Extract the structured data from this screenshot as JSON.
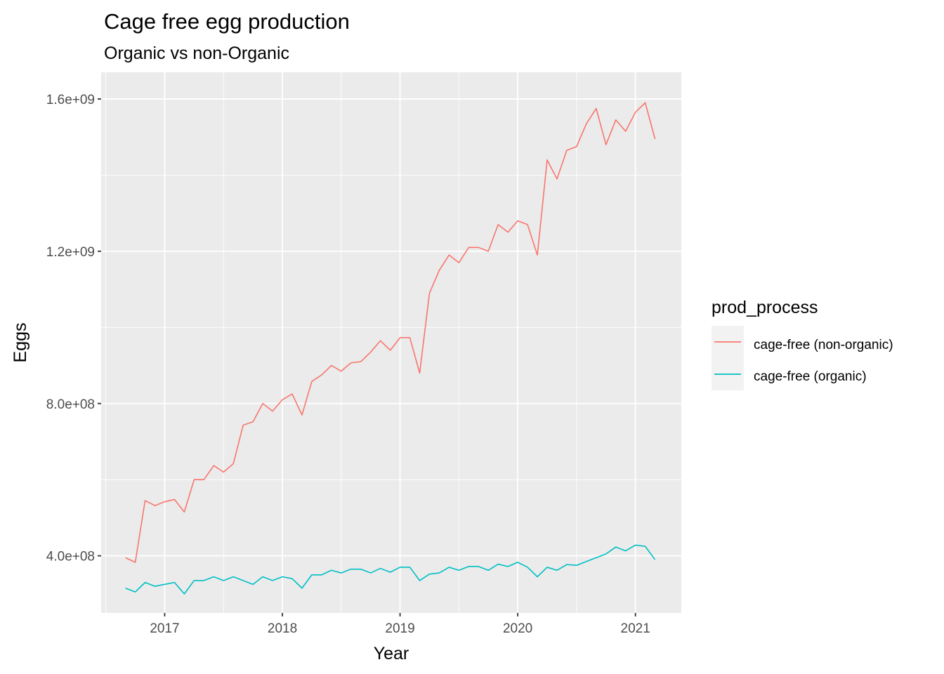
{
  "chart_data": {
    "type": "line",
    "title": "Cage free egg production",
    "subtitle": "Organic vs non-Organic",
    "xlabel": "Year",
    "ylabel": "Eggs",
    "xlim": [
      2016.46,
      2021.39
    ],
    "ylim": [
      250000000,
      1670000000
    ],
    "x_ticks": [
      2017,
      2018,
      2019,
      2020,
      2021
    ],
    "x_tick_labels": [
      "2017",
      "2018",
      "2019",
      "2020",
      "2021"
    ],
    "y_ticks": [
      400000000,
      800000000,
      1200000000,
      1600000000
    ],
    "y_tick_labels": [
      "4.0e+08",
      "8.0e+08",
      "1.2e+09",
      "1.6e+09"
    ],
    "grid": true,
    "legend_position": "right",
    "legend_title": "prod_process",
    "x": [
      "2016-09",
      "2016-10",
      "2016-11",
      "2016-12",
      "2017-01",
      "2017-02",
      "2017-03",
      "2017-04",
      "2017-05",
      "2017-06",
      "2017-07",
      "2017-08",
      "2017-09",
      "2017-10",
      "2017-11",
      "2017-12",
      "2018-01",
      "2018-02",
      "2018-03",
      "2018-04",
      "2018-05",
      "2018-06",
      "2018-07",
      "2018-08",
      "2018-09",
      "2018-10",
      "2018-11",
      "2018-12",
      "2019-01",
      "2019-02",
      "2019-03",
      "2019-04",
      "2019-05",
      "2019-06",
      "2019-07",
      "2019-08",
      "2019-09",
      "2019-10",
      "2019-11",
      "2019-12",
      "2020-01",
      "2020-02",
      "2020-03",
      "2020-04",
      "2020-05",
      "2020-06",
      "2020-07",
      "2020-08",
      "2020-09",
      "2020-10",
      "2020-11",
      "2020-12",
      "2021-01",
      "2021-02",
      "2021-03"
    ],
    "series": [
      {
        "name": "cage-free (non-organic)",
        "color": "#f8766d",
        "values": [
          395000000,
          383000000,
          545000000,
          532000000,
          542000000,
          548000000,
          515000000,
          600000000,
          600000000,
          637000000,
          620000000,
          642000000,
          743000000,
          752000000,
          800000000,
          780000000,
          810000000,
          825000000,
          770000000,
          858000000,
          875000000,
          900000000,
          885000000,
          907000000,
          910000000,
          935000000,
          965000000,
          940000000,
          973000000,
          973000000,
          880000000,
          1090000000,
          1150000000,
          1190000000,
          1170000000,
          1210000000,
          1210000000,
          1200000000,
          1270000000,
          1250000000,
          1280000000,
          1270000000,
          1190000000,
          1440000000,
          1390000000,
          1465000000,
          1475000000,
          1535000000,
          1575000000,
          1480000000,
          1545000000,
          1515000000,
          1565000000,
          1590000000,
          1495000000
        ]
      },
      {
        "name": "cage-free (organic)",
        "color": "#00bfc4",
        "values": [
          315000000,
          305000000,
          330000000,
          320000000,
          325000000,
          330000000,
          300000000,
          335000000,
          335000000,
          345000000,
          335000000,
          345000000,
          335000000,
          325000000,
          345000000,
          335000000,
          345000000,
          340000000,
          315000000,
          350000000,
          350000000,
          362000000,
          355000000,
          365000000,
          365000000,
          355000000,
          367000000,
          357000000,
          370000000,
          370000000,
          335000000,
          352000000,
          355000000,
          370000000,
          362000000,
          372000000,
          372000000,
          362000000,
          378000000,
          372000000,
          383000000,
          370000000,
          345000000,
          370000000,
          362000000,
          377000000,
          375000000,
          385000000,
          395000000,
          405000000,
          423000000,
          413000000,
          428000000,
          425000000,
          390000000
        ]
      }
    ]
  }
}
